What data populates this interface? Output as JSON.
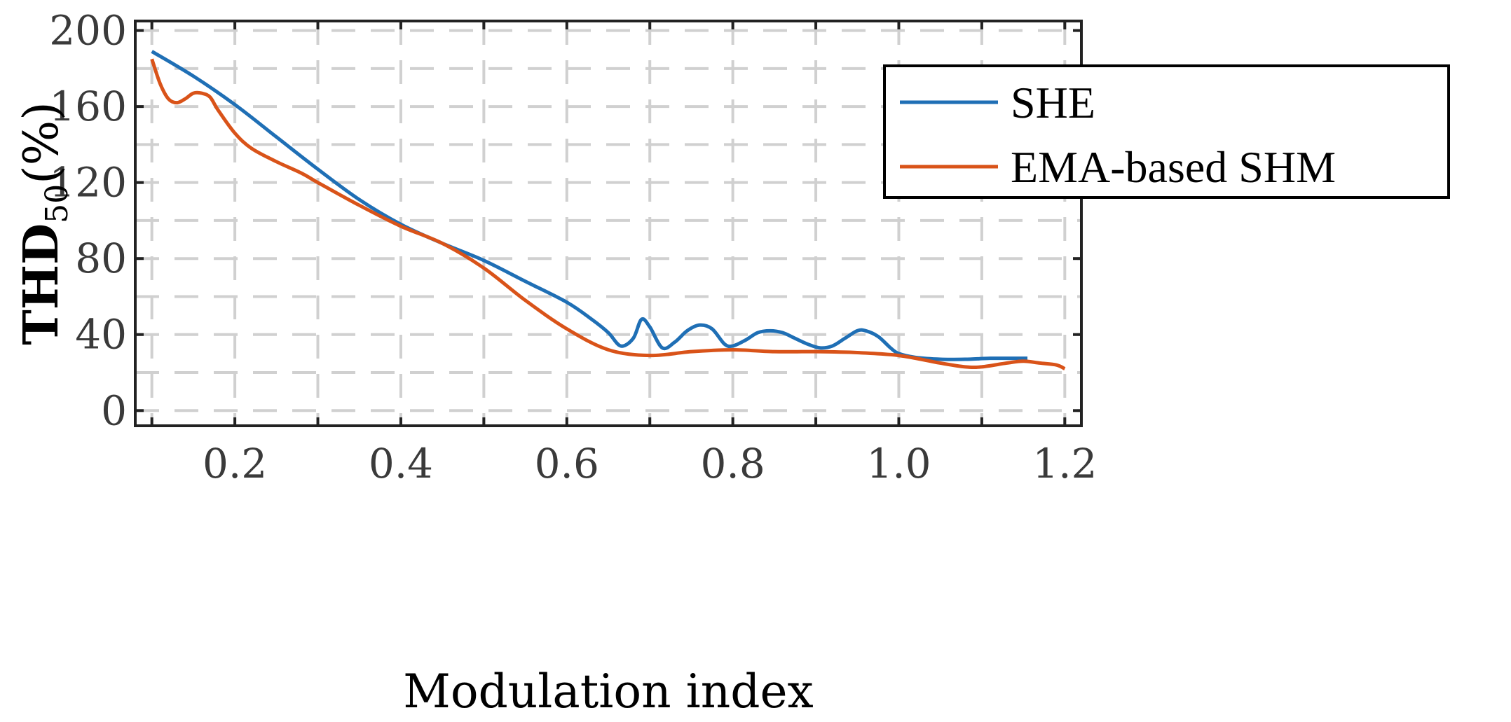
{
  "chart_data": {
    "type": "line",
    "xlabel": "Modulation index",
    "ylabel": {
      "main": "THD",
      "sub": "50",
      "unit": "(%)"
    },
    "xlim": [
      0.08,
      1.22
    ],
    "ylim": [
      -8,
      205
    ],
    "xticks": [
      0.2,
      0.4,
      0.6,
      0.8,
      1.0,
      1.2
    ],
    "xtick_labels": [
      "0.2",
      "0.4",
      "0.6",
      "0.8",
      "1.0",
      "1.2"
    ],
    "yticks": [
      0,
      40,
      80,
      120,
      160,
      200
    ],
    "ytick_labels": [
      "0",
      "40",
      "80",
      "120",
      "160",
      "200"
    ],
    "grid": true,
    "legend_position": "top-right",
    "series": [
      {
        "name": "SHE",
        "color": "#1f6fb5",
        "x": [
          0.1,
          0.15,
          0.2,
          0.25,
          0.3,
          0.35,
          0.4,
          0.45,
          0.5,
          0.55,
          0.6,
          0.63,
          0.65,
          0.665,
          0.68,
          0.69,
          0.7,
          0.715,
          0.73,
          0.745,
          0.76,
          0.775,
          0.79,
          0.8,
          0.815,
          0.83,
          0.845,
          0.86,
          0.875,
          0.89,
          0.905,
          0.92,
          0.935,
          0.95,
          0.96,
          0.975,
          0.99,
          1.0,
          1.02,
          1.05,
          1.08,
          1.11,
          1.14,
          1.155
        ],
        "y": [
          189,
          176,
          161,
          144,
          127,
          111,
          98,
          88,
          79,
          68,
          57,
          48,
          41,
          34,
          38,
          48,
          44,
          33,
          36,
          42,
          45,
          43,
          35,
          34,
          37,
          41,
          42,
          41,
          38,
          35,
          33,
          34,
          38,
          42,
          42,
          39,
          33,
          30,
          28,
          27,
          27,
          27.5,
          27.5,
          27.5
        ]
      },
      {
        "name": "EMA-based SHM",
        "color": "#d95319",
        "x": [
          0.1,
          0.11,
          0.12,
          0.13,
          0.14,
          0.15,
          0.16,
          0.17,
          0.18,
          0.2,
          0.22,
          0.25,
          0.28,
          0.3,
          0.35,
          0.4,
          0.45,
          0.5,
          0.55,
          0.6,
          0.65,
          0.7,
          0.75,
          0.8,
          0.85,
          0.9,
          0.95,
          1.0,
          1.05,
          1.08,
          1.1,
          1.13,
          1.15,
          1.17,
          1.19,
          1.2
        ],
        "y": [
          185,
          172,
          164,
          162,
          164,
          167,
          167,
          165,
          158,
          146,
          138,
          131,
          125,
          120,
          108,
          97,
          88,
          75,
          58,
          43,
          32,
          29,
          31,
          32,
          31,
          31,
          30.5,
          29,
          25,
          23,
          23,
          25,
          26,
          25,
          24,
          22
        ]
      }
    ]
  }
}
